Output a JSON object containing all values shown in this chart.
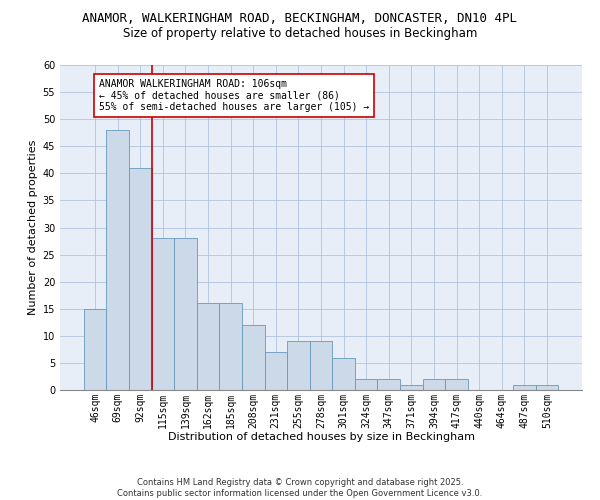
{
  "title_line1": "ANAMOR, WALKERINGHAM ROAD, BECKINGHAM, DONCASTER, DN10 4PL",
  "title_line2": "Size of property relative to detached houses in Beckingham",
  "xlabel": "Distribution of detached houses by size in Beckingham",
  "ylabel": "Number of detached properties",
  "bar_color": "#ccd9e8",
  "bar_edge_color": "#6699bb",
  "grid_color": "#b0c4de",
  "bg_color": "#e8eef8",
  "categories": [
    "46sqm",
    "69sqm",
    "92sqm",
    "115sqm",
    "139sqm",
    "162sqm",
    "185sqm",
    "208sqm",
    "231sqm",
    "255sqm",
    "278sqm",
    "301sqm",
    "324sqm",
    "347sqm",
    "371sqm",
    "394sqm",
    "417sqm",
    "440sqm",
    "464sqm",
    "487sqm",
    "510sqm"
  ],
  "values": [
    15,
    48,
    41,
    28,
    28,
    16,
    16,
    12,
    7,
    9,
    9,
    6,
    2,
    2,
    1,
    2,
    2,
    0,
    0,
    1,
    1
  ],
  "ylim": [
    0,
    60
  ],
  "yticks": [
    0,
    5,
    10,
    15,
    20,
    25,
    30,
    35,
    40,
    45,
    50,
    55,
    60
  ],
  "vline_color": "#cc0000",
  "vline_index": 2.5,
  "annotation_text": "ANAMOR WALKERINGHAM ROAD: 106sqm\n← 45% of detached houses are smaller (86)\n55% of semi-detached houses are larger (105) →",
  "annotation_box_color": "#ffffff",
  "annotation_border_color": "#cc0000",
  "footer_text": "Contains HM Land Registry data © Crown copyright and database right 2025.\nContains public sector information licensed under the Open Government Licence v3.0.",
  "title_fontsize": 9,
  "subtitle_fontsize": 8.5,
  "axis_label_fontsize": 8,
  "tick_fontsize": 7,
  "annotation_fontsize": 7,
  "footer_fontsize": 6
}
